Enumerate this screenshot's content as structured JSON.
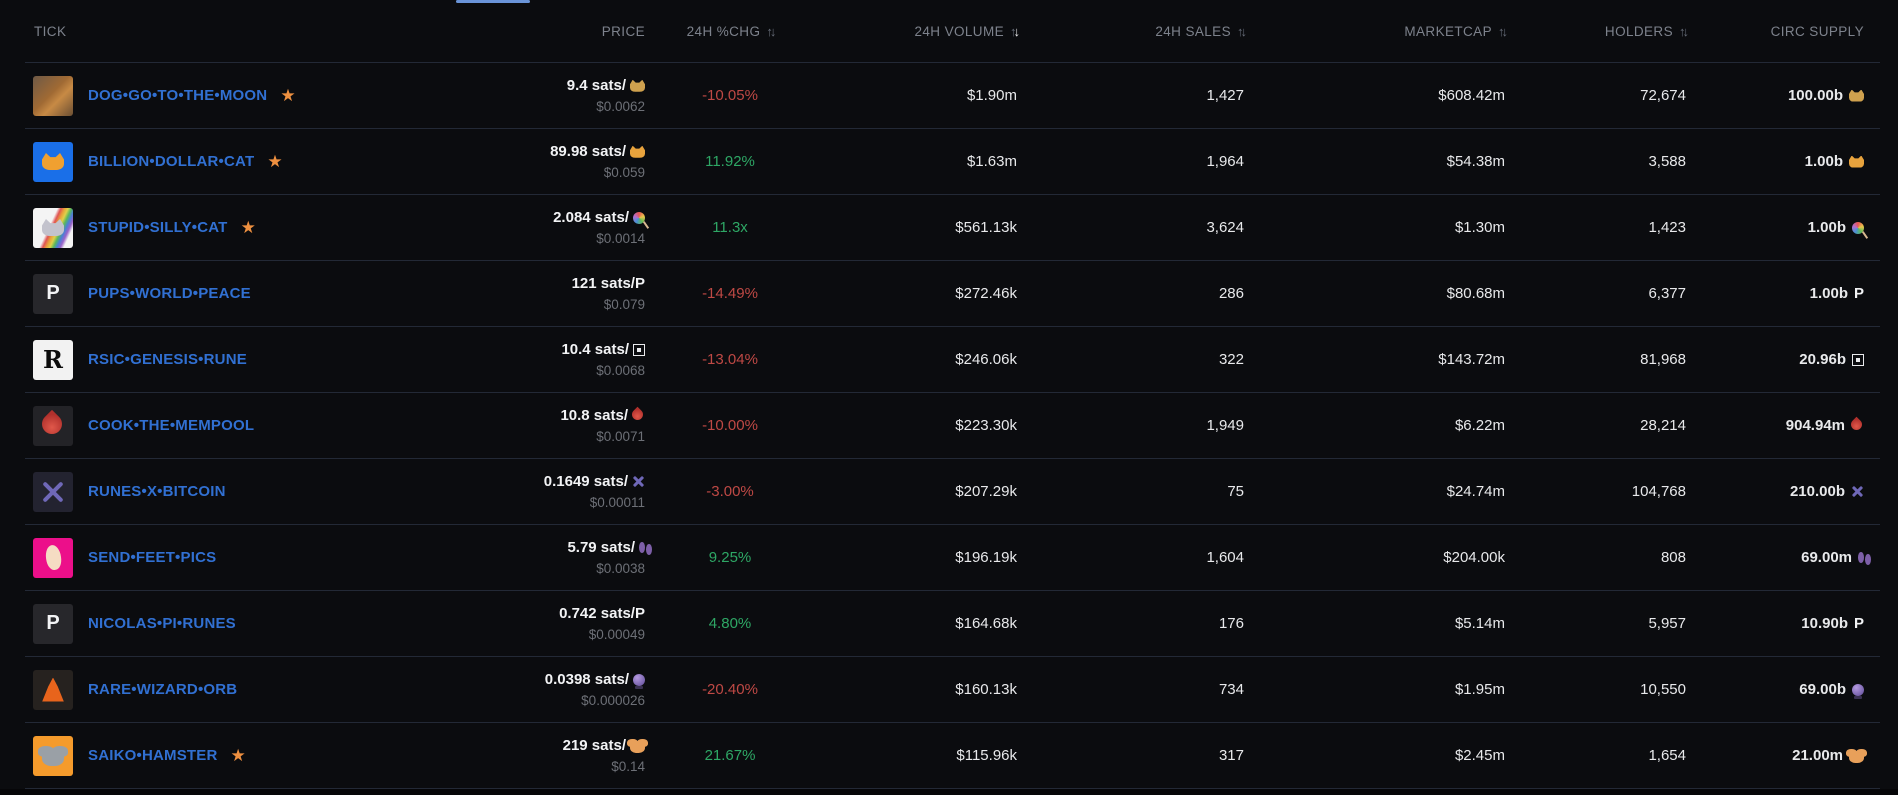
{
  "tab_indicator_color": "#6a94d8",
  "table": {
    "columns": [
      {
        "key": "tick",
        "label": "TICK",
        "align": "left",
        "sortable": false
      },
      {
        "key": "price",
        "label": "PRICE",
        "align": "right",
        "sortable": false
      },
      {
        "key": "chg",
        "label": "24H %CHG",
        "align": "center",
        "sortable": true,
        "sorted": null
      },
      {
        "key": "volume",
        "label": "24H VOLUME",
        "align": "right",
        "sortable": true,
        "sorted": "desc"
      },
      {
        "key": "sales",
        "label": "24H SALES",
        "align": "right",
        "sortable": true,
        "sorted": null
      },
      {
        "key": "mcap",
        "label": "MARKETCAP",
        "align": "right",
        "sortable": true,
        "sorted": null
      },
      {
        "key": "holders",
        "label": "HOLDERS",
        "align": "right",
        "sortable": true,
        "sorted": null
      },
      {
        "key": "supply",
        "label": "CIRC SUPPLY",
        "align": "right",
        "sortable": false
      }
    ],
    "rows": [
      {
        "name": "DOG•GO•TO•THE•MOON",
        "starred": true,
        "thumb_icon": "dog-photo",
        "thumb_char": "",
        "price_sats": "9.4 sats/",
        "symbol_icon": "dog-emoji",
        "symbol_char": "🐕",
        "price_usd": "$0.0062",
        "change": "-10.05%",
        "change_dir": "down",
        "volume": "$1.90m",
        "sales": "1,427",
        "marketcap": "$608.42m",
        "holders": "72,674",
        "supply": "100.00b"
      },
      {
        "name": "BILLION•DOLLAR•CAT",
        "starred": true,
        "thumb_icon": "pixel-cat",
        "thumb_char": "",
        "price_sats": "89.98 sats/",
        "symbol_icon": "cat-emoji",
        "symbol_char": "🐱",
        "price_usd": "$0.059",
        "change": "11.92%",
        "change_dir": "up",
        "volume": "$1.63m",
        "sales": "1,964",
        "marketcap": "$54.38m",
        "holders": "3,588",
        "supply": "1.00b"
      },
      {
        "name": "STUPID•SILLY•CAT",
        "starred": true,
        "thumb_icon": "rainbow-cat",
        "thumb_char": "",
        "price_sats": "2.084 sats/",
        "symbol_icon": "lollipop-emoji",
        "symbol_char": "🍭",
        "price_usd": "$0.0014",
        "change": "11.3x",
        "change_dir": "up",
        "volume": "$561.13k",
        "sales": "3,624",
        "marketcap": "$1.30m",
        "holders": "1,423",
        "supply": "1.00b"
      },
      {
        "name": "PUPS•WORLD•PEACE",
        "starred": false,
        "thumb_icon": "letter-p",
        "thumb_char": "P",
        "price_sats": "121 sats/",
        "symbol_icon": "p-letter",
        "symbol_char": "P",
        "price_usd": "$0.079",
        "change": "-14.49%",
        "change_dir": "down",
        "volume": "$272.46k",
        "sales": "286",
        "marketcap": "$80.68m",
        "holders": "6,377",
        "supply": "1.00b"
      },
      {
        "name": "RSIC•GENESIS•RUNE",
        "starred": false,
        "thumb_icon": "rune-r",
        "thumb_char": "R",
        "price_sats": "10.4 sats/",
        "symbol_icon": "rune-box-glyph",
        "symbol_char": "⊡",
        "price_usd": "$0.0068",
        "change": "-13.04%",
        "change_dir": "down",
        "volume": "$246.06k",
        "sales": "322",
        "marketcap": "$143.72m",
        "holders": "81,968",
        "supply": "20.96b"
      },
      {
        "name": "COOK•THE•MEMPOOL",
        "starred": false,
        "thumb_icon": "flame",
        "thumb_char": "",
        "price_sats": "10.8 sats/",
        "symbol_icon": "flame-emoji",
        "symbol_char": "🔥",
        "price_usd": "$0.0071",
        "change": "-10.00%",
        "change_dir": "down",
        "volume": "$223.30k",
        "sales": "1,949",
        "marketcap": "$6.22m",
        "holders": "28,214",
        "supply": "904.94m"
      },
      {
        "name": "RUNES•X•BITCOIN",
        "starred": false,
        "thumb_icon": "purple-x",
        "thumb_char": "",
        "price_sats": "0.1649 sats/",
        "symbol_icon": "x-glyph",
        "symbol_char": "✖",
        "price_usd": "$0.00011",
        "change": "-3.00%",
        "change_dir": "down",
        "volume": "$207.29k",
        "sales": "75",
        "marketcap": "$24.74m",
        "holders": "104,768",
        "supply": "210.00b"
      },
      {
        "name": "SEND•FEET•PICS",
        "starred": false,
        "thumb_icon": "foot",
        "thumb_char": "",
        "price_sats": "5.79 sats/",
        "symbol_icon": "footprints-emoji",
        "symbol_char": "👣",
        "price_usd": "$0.0038",
        "change": "9.25%",
        "change_dir": "up",
        "volume": "$196.19k",
        "sales": "1,604",
        "marketcap": "$204.00k",
        "holders": "808",
        "supply": "69.00m"
      },
      {
        "name": "NICOLAS•PI•RUNES",
        "starred": false,
        "thumb_icon": "letter-p",
        "thumb_char": "P",
        "price_sats": "0.742 sats/",
        "symbol_icon": "p-letter",
        "symbol_char": "P",
        "price_usd": "$0.00049",
        "change": "4.80%",
        "change_dir": "up",
        "volume": "$164.68k",
        "sales": "176",
        "marketcap": "$5.14m",
        "holders": "5,957",
        "supply": "10.90b"
      },
      {
        "name": "RARE•WIZARD•ORB",
        "starred": false,
        "thumb_icon": "wizard",
        "thumb_char": "",
        "price_sats": "0.0398 sats/",
        "symbol_icon": "crystal-ball-emoji",
        "symbol_char": "🔮",
        "price_usd": "$0.000026",
        "change": "-20.40%",
        "change_dir": "down",
        "volume": "$160.13k",
        "sales": "734",
        "marketcap": "$1.95m",
        "holders": "10,550",
        "supply": "69.00b"
      },
      {
        "name": "SAIKO•HAMSTER",
        "starred": true,
        "thumb_icon": "hamster",
        "thumb_char": "",
        "price_sats": "219 sats/",
        "symbol_icon": "hamster-emoji",
        "symbol_char": "🐹",
        "price_usd": "$0.14",
        "change": "21.67%",
        "change_dir": "up",
        "volume": "$115.96k",
        "sales": "317",
        "marketcap": "$2.45m",
        "holders": "1,654",
        "supply": "21.00m"
      }
    ]
  }
}
